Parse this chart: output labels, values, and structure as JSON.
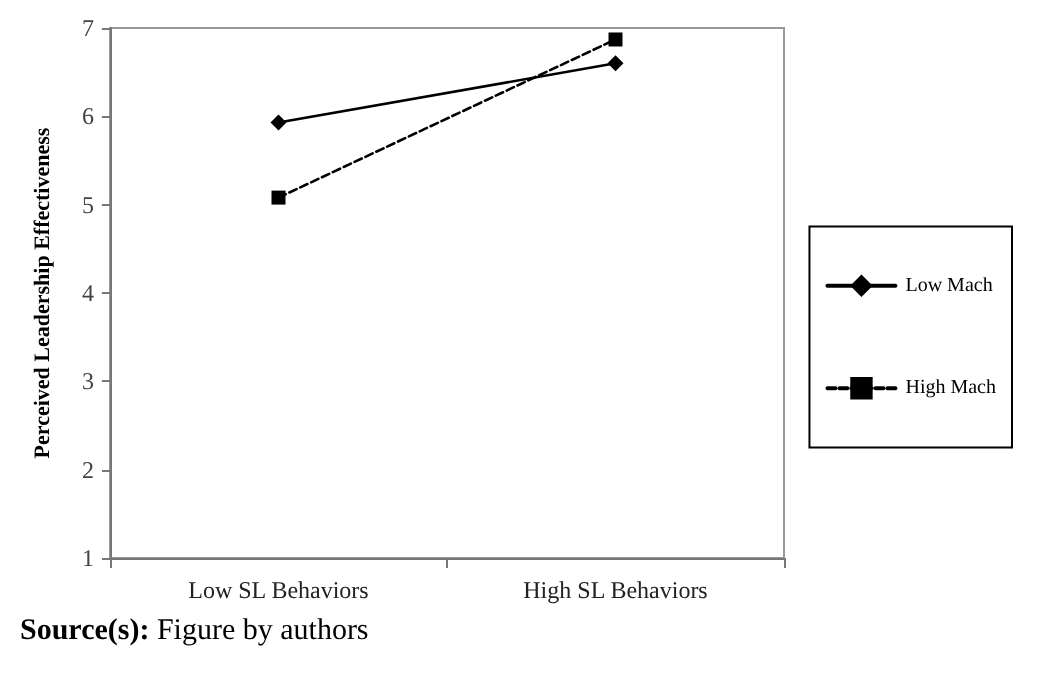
{
  "chart_data": {
    "type": "line",
    "ylabel": "Perceived Leadership Effectiveness",
    "categories": [
      "Low SL Behaviors",
      "High SL Behaviors"
    ],
    "series": [
      {
        "name": "Low Mach",
        "color": "#000000",
        "values": [
          5.93,
          6.6
        ],
        "marker": "diamond",
        "line_style": "solid"
      },
      {
        "name": "High Mach",
        "color": "#000000",
        "values": [
          5.08,
          6.87
        ],
        "marker": "square",
        "line_style": "dashed"
      }
    ],
    "ylim": [
      1,
      7
    ],
    "yticks": [
      1,
      2,
      3,
      4,
      5,
      6,
      7
    ],
    "grid": false,
    "legend": "right",
    "annotations": [
      "Source(s): Figure by authors"
    ]
  }
}
